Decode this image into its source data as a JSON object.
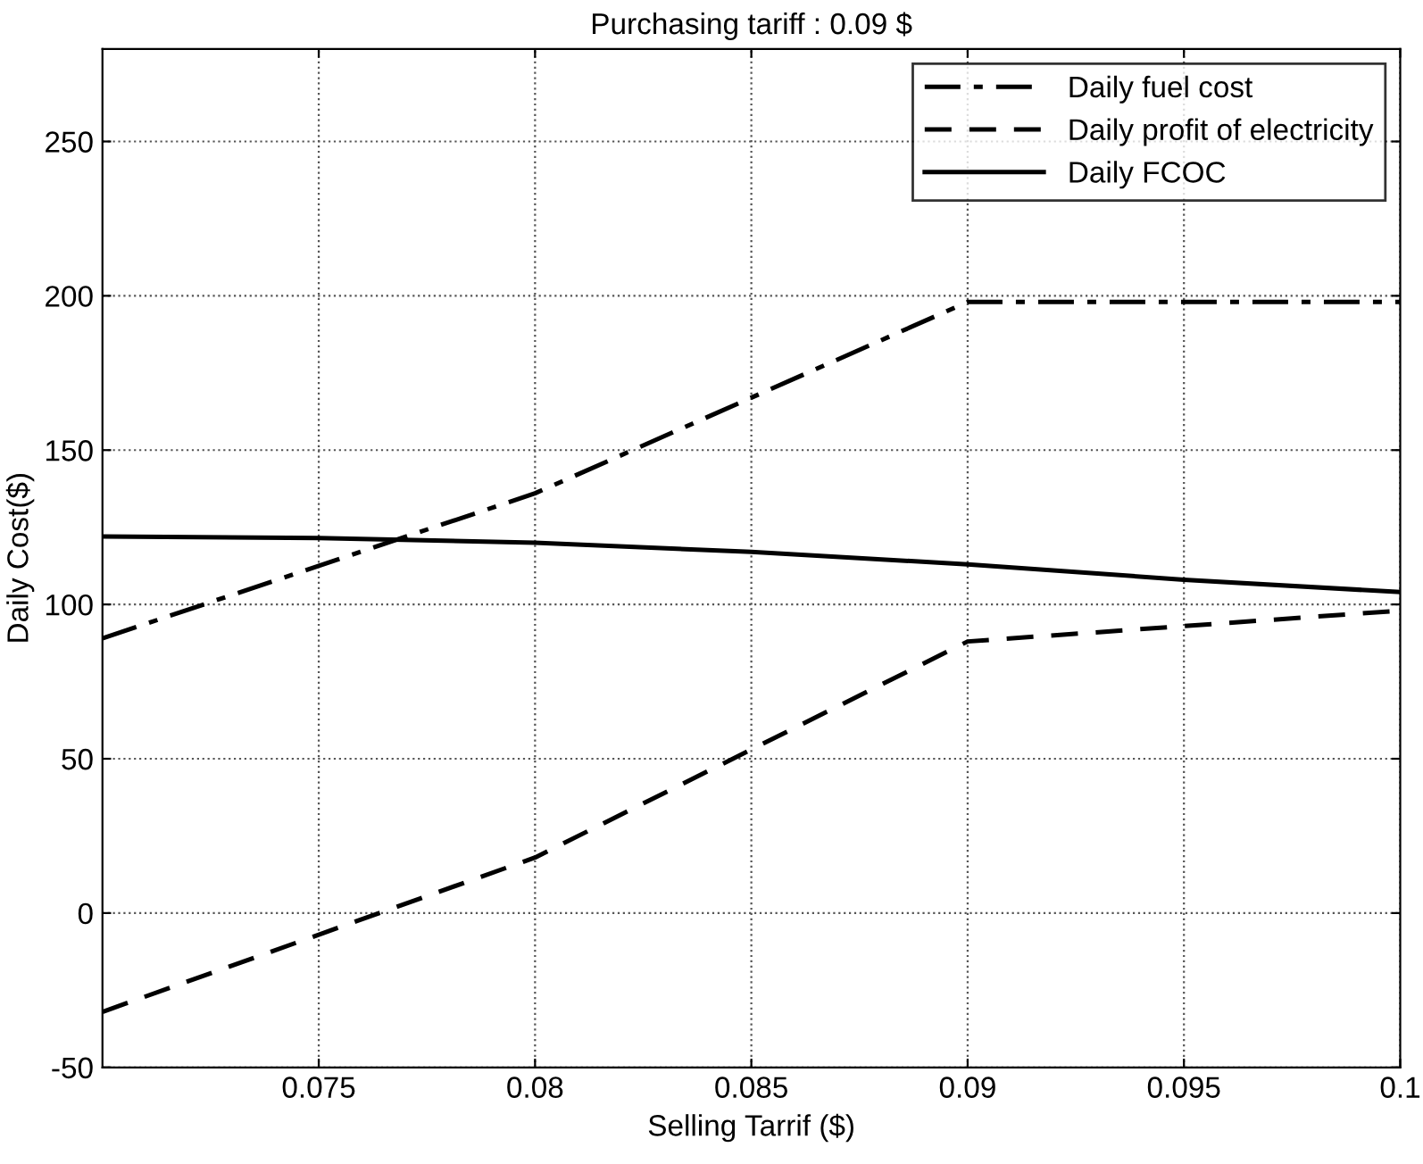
{
  "chart_data": {
    "type": "line",
    "title": "Purchasing tariff : 0.09 $",
    "xlabel": "Selling Tarrif ($)",
    "ylabel": "Daily Cost($)",
    "xlim": [
      0.07,
      0.1
    ],
    "xticks": [
      {
        "value": 0.075,
        "label": "0.075"
      },
      {
        "value": 0.08,
        "label": "0.08"
      },
      {
        "value": 0.085,
        "label": "0.085"
      },
      {
        "value": 0.09,
        "label": "0.09"
      },
      {
        "value": 0.095,
        "label": "0.095"
      },
      {
        "value": 0.1,
        "label": "0.1"
      }
    ],
    "ylim": [
      -50,
      280
    ],
    "yticks": [
      -50,
      0,
      50,
      100,
      150,
      200,
      250
    ],
    "grid": true,
    "legend": "top right",
    "series": [
      {
        "name": "Daily fuel cost",
        "color": "#000000",
        "line_style": "dashdot",
        "x": [
          0.07,
          0.08,
          0.09,
          0.1
        ],
        "values": [
          89,
          136,
          198,
          198
        ]
      },
      {
        "name": "Daily profit of electricity",
        "color": "#000000",
        "line_style": "dashed",
        "x": [
          0.07,
          0.08,
          0.09,
          0.1
        ],
        "values": [
          -32,
          18,
          88,
          98
        ]
      },
      {
        "name": "Daily FCOC",
        "color": "#000000",
        "line_style": "solid",
        "x": [
          0.07,
          0.075,
          0.08,
          0.085,
          0.09,
          0.095,
          0.1
        ],
        "values": [
          122,
          121.5,
          120,
          117,
          113,
          108,
          104
        ]
      }
    ]
  }
}
